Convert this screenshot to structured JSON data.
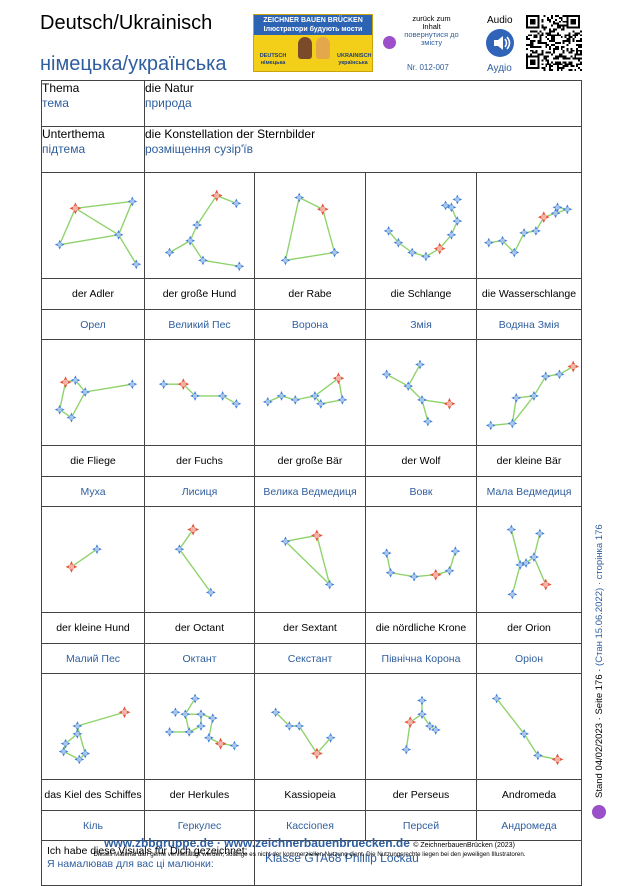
{
  "header": {
    "title_de": "Deutsch/Ukrainisch",
    "title_uk": "німецька/українська",
    "logo_top": "ZEICHNER BAUEN BRÜCKEN",
    "logo_sub": "Ілюстратори будують мости",
    "logo_left": "DEUTSCH німецька",
    "logo_right": "UKRAINISCH українська",
    "back_de": "zurück zum Inhalt",
    "back_uk": "повернутися до змісту",
    "nr": "Nr. 012-007",
    "audio_de": "Audio",
    "audio_uk": "Аудіо"
  },
  "topic": {
    "thema_label_de": "Thema",
    "thema_label_uk": "тема",
    "thema_de": "die Natur",
    "thema_uk": "природа",
    "unterthema_label_de": "Unterthema",
    "unterthema_label_uk": "підтема",
    "unterthema_de": "die Konstellation der Sternbilder",
    "unterthema_uk": "розміщення сузір'їв"
  },
  "rows": [
    [
      {
        "de": "der Adler",
        "uk": "Орел"
      },
      {
        "de": "der große Hund",
        "uk": "Великий Пес"
      },
      {
        "de": "der Rabe",
        "uk": "Ворона"
      },
      {
        "de": "die Schlange",
        "uk": "Змія"
      },
      {
        "de": "die Wasserschlange",
        "uk": "Водяна Змія"
      }
    ],
    [
      {
        "de": "die Fliege",
        "uk": "Муха"
      },
      {
        "de": "der Fuchs",
        "uk": "Лисиця"
      },
      {
        "de": "der große Bär",
        "uk": "Велика Ведмедиця"
      },
      {
        "de": "der Wolf",
        "uk": "Вовк"
      },
      {
        "de": "der kleine Bär",
        "uk": "Мала Ведмедиця"
      }
    ],
    [
      {
        "de": "der kleine Hund",
        "uk": "Малий Пес"
      },
      {
        "de": "der Octant",
        "uk": "Октант"
      },
      {
        "de": "der Sextant",
        "uk": "Секстант"
      },
      {
        "de": "die nördliche Krone",
        "uk": "Північна Корона"
      },
      {
        "de": "der Orion",
        "uk": "Оріон"
      }
    ],
    [
      {
        "de": "das Kiel des Schiffes",
        "uk": "Кіль"
      },
      {
        "de": "der Herkules",
        "uk": "Геркулес"
      },
      {
        "de": "Kassiopeia",
        "uk": "Кассіопея"
      },
      {
        "de": "der Perseus",
        "uk": "Персей"
      },
      {
        "de": "Andromeda",
        "uk": "Андромеда"
      }
    ]
  ],
  "credits": {
    "label_de": "Ich habe diese Visuals für Dich gezeichnet:",
    "label_uk": "Я намалював для вас ці малюнки:",
    "artist": "Klasse GTA68 Phillip Lockau"
  },
  "footer": {
    "site": "www.zbbgruppe.de · www.zeichnerbauenbruecken.de",
    "copyright": "© ZeichnerbauenBrücken (2023)",
    "disclaimer": "Dieses Material darf gerne vervielfältigt werden, solange es nicht der kommerziellen Nutzung dient. Die Nutzungsrechte liegen bei den jeweiligen Illustratoren.",
    "side_de": "Stand 04/02/2023 · Seite 176 ·",
    "side_uk": "(Стан 15.06.2022) · сторінка 176"
  },
  "colors": {
    "star": "#3f7fd6",
    "highlight": "#e3553b",
    "line": "#8ed36a",
    "text_uk": "#2f5e9e",
    "nav_dot": "#9b4fc9"
  }
}
